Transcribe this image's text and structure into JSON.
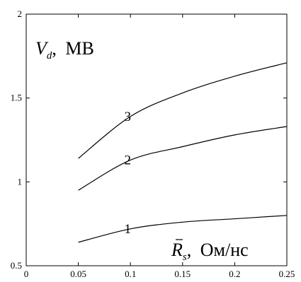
{
  "chart_data": {
    "type": "line",
    "x_ticks": [
      "0",
      "0.05",
      "0.1",
      "0.15",
      "0.2",
      "0.25"
    ],
    "y_ticks": [
      "0.5",
      "1",
      "1.5",
      "2"
    ],
    "xlim": [
      0,
      0.25
    ],
    "ylim": [
      0.5,
      2
    ],
    "grid": false,
    "ylabel": {
      "main": "V",
      "sub": "d",
      "unit": "МВ"
    },
    "xlabel": {
      "main": "R",
      "sub": "s",
      "unit": "Ом/нс"
    },
    "series": [
      {
        "name": "1",
        "x": [
          0.05,
          0.1,
          0.15,
          0.2,
          0.25
        ],
        "y": [
          0.64,
          0.72,
          0.76,
          0.78,
          0.8
        ]
      },
      {
        "name": "2",
        "x": [
          0.05,
          0.1,
          0.15,
          0.2,
          0.25
        ],
        "y": [
          0.95,
          1.13,
          1.21,
          1.28,
          1.33
        ]
      },
      {
        "name": "3",
        "x": [
          0.05,
          0.1,
          0.15,
          0.2,
          0.25
        ],
        "y": [
          1.14,
          1.39,
          1.53,
          1.63,
          1.71
        ]
      }
    ]
  }
}
